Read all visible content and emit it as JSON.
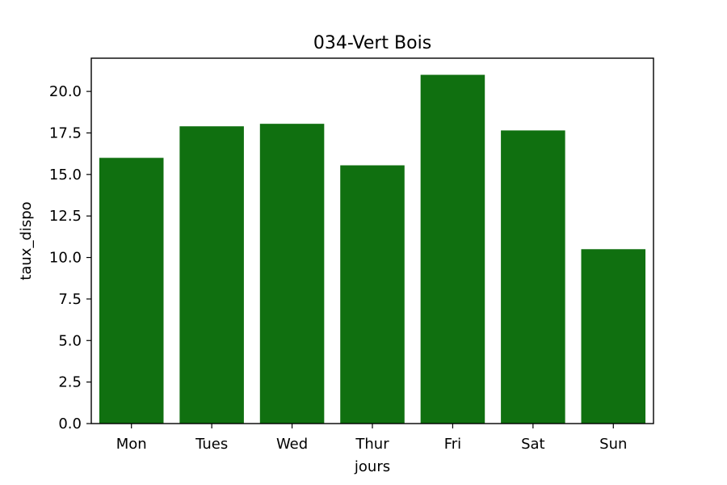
{
  "chart_data": {
    "type": "bar",
    "title": "034-Vert Bois",
    "xlabel": "jours",
    "ylabel": "taux_dispo",
    "categories": [
      "Mon",
      "Tues",
      "Wed",
      "Thur",
      "Fri",
      "Sat",
      "Sun"
    ],
    "values": [
      16.0,
      17.9,
      18.05,
      15.55,
      21.0,
      17.65,
      10.5
    ],
    "ylim": [
      0,
      22.0
    ],
    "yticks": [
      0.0,
      2.5,
      5.0,
      7.5,
      10.0,
      12.5,
      15.0,
      17.5,
      20.0
    ],
    "ytick_labels": [
      "0.0",
      "2.5",
      "5.0",
      "7.5",
      "10.0",
      "12.5",
      "15.0",
      "17.5",
      "20.0"
    ],
    "bar_color": "#107010",
    "grid": false,
    "legend": "none"
  }
}
